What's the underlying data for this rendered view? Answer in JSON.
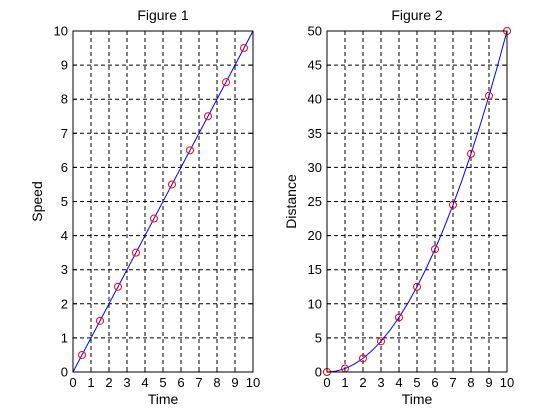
{
  "chart_data": [
    {
      "type": "scatter",
      "title": "Figure 1",
      "xlabel": "Time",
      "ylabel": "Speed",
      "xlim": [
        0,
        10
      ],
      "ylim": [
        0,
        10
      ],
      "xticks": [
        "0",
        "1",
        "2",
        "3",
        "4",
        "5",
        "6",
        "7",
        "8",
        "9",
        "10"
      ],
      "yticks": [
        "0",
        "1",
        "2",
        "3",
        "4",
        "5",
        "6",
        "7",
        "8",
        "9",
        "10"
      ],
      "grid": true,
      "line": {
        "color": "#0000ff",
        "x": [
          0,
          10
        ],
        "y": [
          0,
          10
        ]
      },
      "points": {
        "color": "#ff0000",
        "marker": "circle",
        "x": [
          0.5,
          1.5,
          2.5,
          3.5,
          4.5,
          5.5,
          6.5,
          7.5,
          8.5,
          9.5
        ],
        "y": [
          0.5,
          1.5,
          2.5,
          3.5,
          4.5,
          5.5,
          6.5,
          7.5,
          8.5,
          9.5
        ]
      }
    },
    {
      "type": "scatter",
      "title": "Figure 2",
      "xlabel": "Time",
      "ylabel": "Distance",
      "xlim": [
        0,
        10
      ],
      "ylim": [
        0,
        50
      ],
      "xticks": [
        "0",
        "1",
        "2",
        "3",
        "4",
        "5",
        "6",
        "7",
        "8",
        "9",
        "10"
      ],
      "yticks": [
        "0",
        "5",
        "10",
        "15",
        "20",
        "25",
        "30",
        "35",
        "40",
        "45",
        "50"
      ],
      "grid": true,
      "line": {
        "color": "#0000ff",
        "x": [
          0,
          0.5,
          1,
          1.5,
          2,
          2.5,
          3,
          3.5,
          4,
          4.5,
          5,
          5.5,
          6,
          6.5,
          7,
          7.5,
          8,
          8.5,
          9,
          9.5,
          10
        ],
        "y": [
          0,
          0.125,
          0.5,
          1.125,
          2,
          3.125,
          4.5,
          6.125,
          8,
          10.125,
          12.5,
          15.125,
          18,
          21.125,
          24.5,
          28.125,
          32,
          36.125,
          40.5,
          45.125,
          50
        ]
      },
      "points": {
        "color": "#ff0000",
        "marker": "circle",
        "x": [
          0,
          1,
          2,
          3,
          4,
          5,
          6,
          7,
          8,
          9,
          10
        ],
        "y": [
          0,
          0.5,
          2,
          4.5,
          8,
          12.5,
          18,
          24.5,
          32,
          40.5,
          50
        ]
      }
    }
  ]
}
